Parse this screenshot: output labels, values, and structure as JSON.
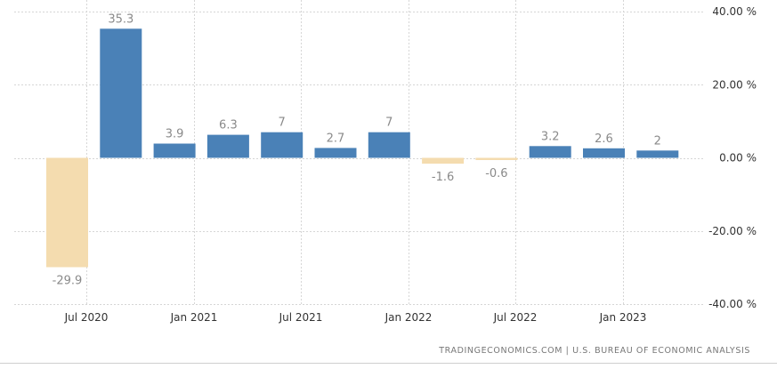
{
  "chart_data": {
    "type": "bar",
    "title": "",
    "xlabel": "",
    "ylabel": "",
    "ylim": [
      -40,
      40
    ],
    "y_ticks": [
      40,
      20,
      0,
      -20,
      -40
    ],
    "y_tick_labels": [
      "40.00 %",
      "20.00 %",
      "0.00 %",
      "-20.00 %",
      "-40.00 %"
    ],
    "axis_position": "right",
    "grid": true,
    "categories": [
      "2020 Q2",
      "2020 Q3",
      "2020 Q4",
      "2021 Q1",
      "2021 Q2",
      "2021 Q3",
      "2021 Q4",
      "2022 Q1",
      "2022 Q2",
      "2022 Q3",
      "2022 Q4",
      "2023 Q1"
    ],
    "values": [
      -29.9,
      35.3,
      3.9,
      6.3,
      7,
      2.7,
      7,
      -1.6,
      -0.6,
      3.2,
      2.6,
      2
    ],
    "value_labels": [
      "-29.9",
      "35.3",
      "3.9",
      "6.3",
      "7",
      "2.7",
      "7",
      "-1.6",
      "-0.6",
      "3.2",
      "2.6",
      "2"
    ],
    "x_tick_labels": [
      "Jul 2020",
      "Jan 2021",
      "Jul 2021",
      "Jan 2022",
      "Jul 2022",
      "Jan 2023"
    ],
    "colors": {
      "positive": "#4a81b7",
      "negative": "#f4dcaf",
      "label": "#8a8a8a",
      "grid": "#d6d6d6",
      "axis_text": "#333333"
    }
  },
  "footer": {
    "source": "TRADINGECONOMICS.COM  |  U.S. BUREAU OF ECONOMIC ANALYSIS"
  }
}
